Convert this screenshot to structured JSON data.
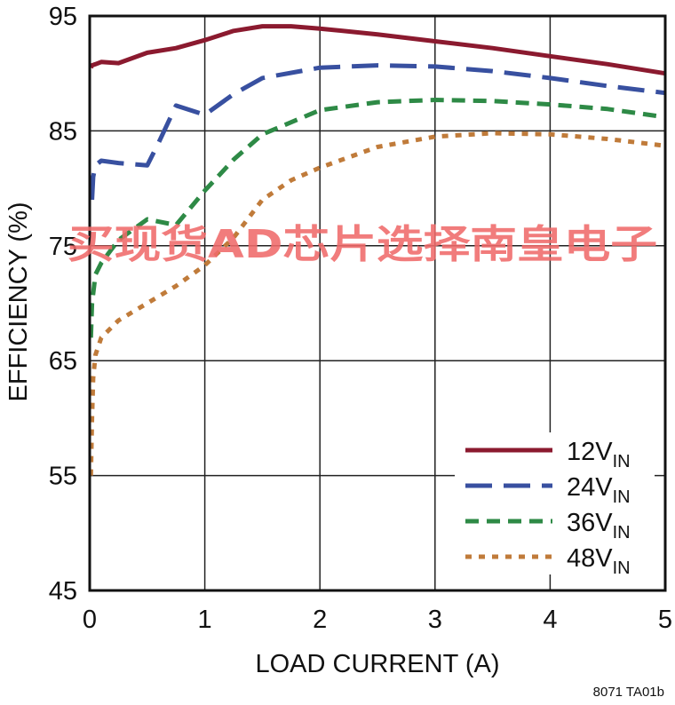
{
  "chart_data": {
    "type": "line",
    "xlabel": "LOAD CURRENT (A)",
    "ylabel": "EFFICIENCY (%)",
    "xlim": [
      0,
      5
    ],
    "ylim": [
      45,
      95
    ],
    "xticks": [
      0,
      1,
      2,
      3,
      4,
      5
    ],
    "yticks": [
      45,
      55,
      65,
      75,
      85,
      95
    ],
    "grid": true,
    "legend_position": "bottom-right",
    "series": [
      {
        "name": "12V",
        "subscript": "IN",
        "color": "#8b1a2f",
        "style": "solid",
        "points": [
          [
            0.01,
            90.5
          ],
          [
            0.02,
            90.7
          ],
          [
            0.05,
            90.8
          ],
          [
            0.1,
            91.0
          ],
          [
            0.25,
            90.9
          ],
          [
            0.5,
            91.8
          ],
          [
            0.75,
            92.2
          ],
          [
            1.0,
            92.9
          ],
          [
            1.25,
            93.7
          ],
          [
            1.5,
            94.1
          ],
          [
            1.75,
            94.1
          ],
          [
            2.0,
            93.9
          ],
          [
            2.5,
            93.4
          ],
          [
            3.0,
            92.8
          ],
          [
            3.5,
            92.2
          ],
          [
            4.0,
            91.5
          ],
          [
            4.5,
            90.8
          ],
          [
            5.0,
            90.0
          ]
        ]
      },
      {
        "name": "24V",
        "subscript": "IN",
        "color": "#3850a0",
        "style": "longdash",
        "points": [
          [
            0.02,
            79.0
          ],
          [
            0.03,
            81.0
          ],
          [
            0.05,
            82.0
          ],
          [
            0.1,
            82.4
          ],
          [
            0.25,
            82.2
          ],
          [
            0.5,
            82.0
          ],
          [
            0.6,
            84.0
          ],
          [
            0.75,
            87.2
          ],
          [
            1.0,
            86.4
          ],
          [
            1.25,
            88.2
          ],
          [
            1.5,
            89.6
          ],
          [
            2.0,
            90.5
          ],
          [
            2.5,
            90.7
          ],
          [
            3.0,
            90.6
          ],
          [
            3.5,
            90.2
          ],
          [
            4.0,
            89.6
          ],
          [
            4.5,
            88.9
          ],
          [
            5.0,
            88.3
          ]
        ]
      },
      {
        "name": "36V",
        "subscript": "IN",
        "color": "#2e8a46",
        "style": "dash",
        "points": [
          [
            0.01,
            67.0
          ],
          [
            0.02,
            70.0
          ],
          [
            0.05,
            72.5
          ],
          [
            0.1,
            73.5
          ],
          [
            0.25,
            75.5
          ],
          [
            0.5,
            77.3
          ],
          [
            0.75,
            76.8
          ],
          [
            1.0,
            79.8
          ],
          [
            1.25,
            82.5
          ],
          [
            1.5,
            84.7
          ],
          [
            2.0,
            86.8
          ],
          [
            2.5,
            87.5
          ],
          [
            3.0,
            87.7
          ],
          [
            3.5,
            87.6
          ],
          [
            4.0,
            87.3
          ],
          [
            4.5,
            86.9
          ],
          [
            5.0,
            86.2
          ]
        ]
      },
      {
        "name": "48V",
        "subscript": "IN",
        "color": "#c07b3a",
        "style": "dot",
        "points": [
          [
            0.01,
            55.0
          ],
          [
            0.02,
            60.0
          ],
          [
            0.03,
            63.5
          ],
          [
            0.05,
            65.5
          ],
          [
            0.1,
            67.0
          ],
          [
            0.25,
            68.5
          ],
          [
            0.5,
            70.0
          ],
          [
            0.75,
            71.5
          ],
          [
            1.0,
            73.3
          ],
          [
            1.25,
            75.7
          ],
          [
            1.5,
            79.0
          ],
          [
            1.75,
            80.7
          ],
          [
            2.0,
            81.8
          ],
          [
            2.5,
            83.6
          ],
          [
            3.0,
            84.5
          ],
          [
            3.5,
            84.8
          ],
          [
            4.0,
            84.7
          ],
          [
            4.5,
            84.3
          ],
          [
            5.0,
            83.7
          ]
        ]
      }
    ]
  },
  "footnote": "8071 TA01b",
  "watermark": "买现货AD芯片选择南皇电子"
}
